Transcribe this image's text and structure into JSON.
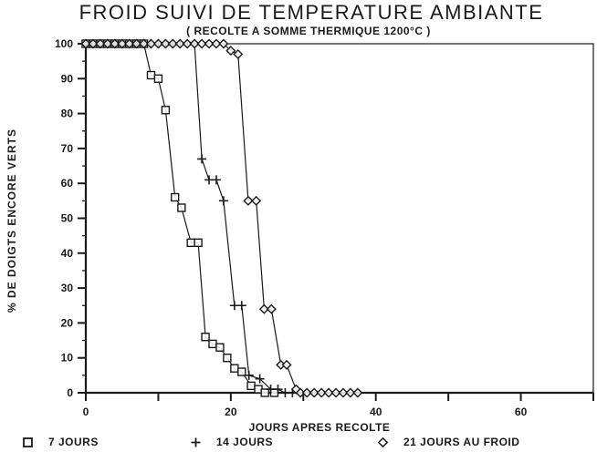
{
  "page": {
    "background": "#ffffff",
    "ink": "#1a1a1a"
  },
  "chart_data": {
    "type": "line",
    "title": "FROID SUIVI DE TEMPERATURE AMBIANTE",
    "subtitle": "( RECOLTE A SOMME THERMIQUE 1200°C )",
    "xlabel": "JOURS APRES RECOLTE",
    "ylabel": "% DE DOIGTS ENCORE VERTS",
    "grid": false,
    "legend_position": "bottom",
    "x_range": [
      0,
      70
    ],
    "y_range": [
      0,
      100
    ],
    "x_ticks": [
      {
        "value": 0,
        "label": "0"
      },
      {
        "value": 10,
        "label": ""
      },
      {
        "value": 20,
        "label": "20"
      },
      {
        "value": 30,
        "label": ""
      },
      {
        "value": 40,
        "label": "40"
      },
      {
        "value": 50,
        "label": ""
      },
      {
        "value": 60,
        "label": "60"
      },
      {
        "value": 70,
        "label": ""
      }
    ],
    "y_ticks": [
      {
        "value": 0,
        "label": "0"
      },
      {
        "value": 10,
        "label": "10"
      },
      {
        "value": 20,
        "label": "20"
      },
      {
        "value": 30,
        "label": "30"
      },
      {
        "value": 40,
        "label": "40"
      },
      {
        "value": 50,
        "label": "50"
      },
      {
        "value": 60,
        "label": "60"
      },
      {
        "value": 70,
        "label": "70"
      },
      {
        "value": 80,
        "label": "80"
      },
      {
        "value": 90,
        "label": "90"
      },
      {
        "value": 100,
        "label": "100"
      }
    ],
    "y_minor_tick_step": 5,
    "series": [
      {
        "name": "7 JOURS",
        "marker": "square",
        "points": [
          [
            0,
            100
          ],
          [
            1,
            100
          ],
          [
            2,
            100
          ],
          [
            3,
            100
          ],
          [
            4,
            100
          ],
          [
            5,
            100
          ],
          [
            6,
            100
          ],
          [
            7,
            100
          ],
          [
            8,
            100
          ],
          [
            9,
            91
          ],
          [
            10,
            90
          ],
          [
            11,
            81
          ],
          [
            12.3,
            56
          ],
          [
            13.2,
            53
          ],
          [
            14.5,
            43
          ],
          [
            15.5,
            43
          ],
          [
            16.5,
            16
          ],
          [
            17.5,
            14
          ],
          [
            18.5,
            13
          ],
          [
            19.5,
            10
          ],
          [
            20.5,
            7
          ],
          [
            21.5,
            6
          ],
          [
            22.8,
            2
          ],
          [
            23.8,
            1
          ],
          [
            24.7,
            0
          ],
          [
            26,
            0
          ]
        ]
      },
      {
        "name": "14 JOURS",
        "marker": "plus",
        "points": [
          [
            0,
            100
          ],
          [
            1,
            100
          ],
          [
            2,
            100
          ],
          [
            3,
            100
          ],
          [
            4,
            100
          ],
          [
            5,
            100
          ],
          [
            6,
            100
          ],
          [
            7,
            100
          ],
          [
            8,
            100
          ],
          [
            9,
            100
          ],
          [
            10,
            100
          ],
          [
            11,
            100
          ],
          [
            12,
            100
          ],
          [
            13,
            100
          ],
          [
            14,
            100
          ],
          [
            15,
            100
          ],
          [
            16,
            67
          ],
          [
            17,
            61
          ],
          [
            18,
            61
          ],
          [
            19,
            55
          ],
          [
            20.5,
            25
          ],
          [
            21.5,
            25
          ],
          [
            22.5,
            5
          ],
          [
            24,
            4
          ],
          [
            25.5,
            1
          ],
          [
            26.5,
            1
          ],
          [
            27.5,
            0
          ],
          [
            28.5,
            0
          ]
        ]
      },
      {
        "name": "21 JOURS AU FROID",
        "marker": "diamond",
        "points": [
          [
            0,
            100
          ],
          [
            1,
            100
          ],
          [
            2,
            100
          ],
          [
            3,
            100
          ],
          [
            4,
            100
          ],
          [
            5,
            100
          ],
          [
            6,
            100
          ],
          [
            7,
            100
          ],
          [
            8,
            100
          ],
          [
            9,
            100
          ],
          [
            10,
            100
          ],
          [
            11,
            100
          ],
          [
            12,
            100
          ],
          [
            13,
            100
          ],
          [
            14,
            100
          ],
          [
            15,
            100
          ],
          [
            16,
            100
          ],
          [
            17,
            100
          ],
          [
            18,
            100
          ],
          [
            19,
            100
          ],
          [
            20,
            98
          ],
          [
            21,
            97
          ],
          [
            22.4,
            55
          ],
          [
            23.5,
            55
          ],
          [
            24.6,
            24
          ],
          [
            25.6,
            24
          ],
          [
            26.9,
            8
          ],
          [
            27.7,
            8
          ],
          [
            29,
            1
          ],
          [
            29.6,
            0
          ],
          [
            30.5,
            0
          ],
          [
            31.5,
            0
          ],
          [
            32.5,
            0
          ],
          [
            33.5,
            0
          ],
          [
            34.5,
            0
          ],
          [
            35.5,
            0
          ],
          [
            36.5,
            0
          ],
          [
            37.5,
            0
          ]
        ]
      }
    ]
  }
}
